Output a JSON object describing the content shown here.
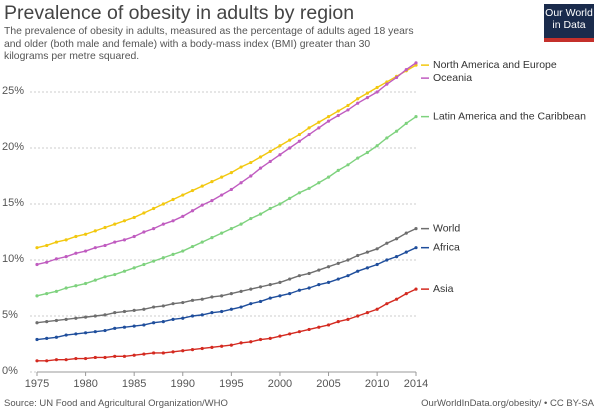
{
  "chart_data": {
    "type": "line",
    "title": "Prevalence of obesity in adults by region",
    "subtitle": "The prevalence of obesity in adults, measured as the percentage of adults aged 18 years and older (both male and female) with a body-mass index (BMI) greater than 30 kilograms per metre squared.",
    "logo": [
      "Our World",
      "in Data"
    ],
    "source": "Source: UN Food and Agricultural Organization/WHO",
    "attribution": "OurWorldInData.org/obesity/ • CC BY-SA",
    "x": [
      1975,
      1976,
      1977,
      1978,
      1979,
      1980,
      1981,
      1982,
      1983,
      1984,
      1985,
      1986,
      1987,
      1988,
      1989,
      1990,
      1991,
      1992,
      1993,
      1994,
      1995,
      1996,
      1997,
      1998,
      1999,
      2000,
      2001,
      2002,
      2003,
      2004,
      2005,
      2006,
      2007,
      2008,
      2009,
      2010,
      2011,
      2012,
      2013,
      2014
    ],
    "xlim": [
      1975,
      2014
    ],
    "xticks": [
      1975,
      1980,
      1985,
      1990,
      1995,
      2000,
      2005,
      2010,
      2014
    ],
    "ylim": [
      0,
      27.5
    ],
    "yticks": [
      {
        "value": 0,
        "label": "0%"
      },
      {
        "value": 5,
        "label": "5%"
      },
      {
        "value": 10,
        "label": "10%"
      },
      {
        "value": 15,
        "label": "15%"
      },
      {
        "value": 20,
        "label": "20%"
      },
      {
        "value": 25,
        "label": "25%"
      }
    ],
    "grid": true,
    "series": [
      {
        "name": "North America and Europe",
        "color": "#f2c80f",
        "values": [
          11.1,
          11.3,
          11.6,
          11.8,
          12.1,
          12.3,
          12.6,
          12.9,
          13.2,
          13.5,
          13.8,
          14.2,
          14.6,
          15.0,
          15.4,
          15.8,
          16.2,
          16.6,
          17.0,
          17.4,
          17.8,
          18.3,
          18.7,
          19.2,
          19.7,
          20.2,
          20.7,
          21.2,
          21.8,
          22.3,
          22.8,
          23.3,
          23.8,
          24.4,
          24.9,
          25.4,
          25.9,
          26.4,
          26.9,
          27.4
        ]
      },
      {
        "name": "Oceania",
        "color": "#c05cc0",
        "values": [
          9.6,
          9.8,
          10.1,
          10.3,
          10.6,
          10.8,
          11.1,
          11.3,
          11.6,
          11.8,
          12.1,
          12.5,
          12.8,
          13.2,
          13.5,
          13.9,
          14.4,
          14.9,
          15.3,
          15.8,
          16.3,
          16.9,
          17.5,
          18.2,
          18.8,
          19.4,
          20.0,
          20.6,
          21.2,
          21.8,
          22.4,
          22.9,
          23.4,
          24.0,
          24.5,
          25.0,
          25.7,
          26.3,
          27.0,
          27.6
        ]
      },
      {
        "name": "Latin America and the Caribbean",
        "color": "#7ed27e",
        "values": [
          6.8,
          7.0,
          7.2,
          7.5,
          7.7,
          7.9,
          8.2,
          8.5,
          8.7,
          9.0,
          9.3,
          9.6,
          9.9,
          10.2,
          10.5,
          10.8,
          11.2,
          11.6,
          12.0,
          12.4,
          12.8,
          13.2,
          13.7,
          14.1,
          14.6,
          15.0,
          15.5,
          16.0,
          16.4,
          16.9,
          17.4,
          18.0,
          18.5,
          19.1,
          19.6,
          20.2,
          20.9,
          21.5,
          22.2,
          22.8
        ]
      },
      {
        "name": "World",
        "color": "#6e6e6e",
        "values": [
          4.4,
          4.5,
          4.6,
          4.7,
          4.8,
          4.9,
          5.0,
          5.1,
          5.3,
          5.4,
          5.5,
          5.6,
          5.8,
          5.9,
          6.1,
          6.2,
          6.4,
          6.5,
          6.7,
          6.8,
          7.0,
          7.2,
          7.4,
          7.6,
          7.8,
          8.0,
          8.3,
          8.6,
          8.8,
          9.1,
          9.4,
          9.7,
          10.0,
          10.4,
          10.7,
          11.0,
          11.5,
          11.9,
          12.4,
          12.8
        ]
      },
      {
        "name": "Africa",
        "color": "#1f4e9c",
        "values": [
          2.9,
          3.0,
          3.1,
          3.3,
          3.4,
          3.5,
          3.6,
          3.7,
          3.9,
          4.0,
          4.1,
          4.2,
          4.4,
          4.5,
          4.7,
          4.8,
          5.0,
          5.1,
          5.3,
          5.4,
          5.6,
          5.8,
          6.1,
          6.3,
          6.6,
          6.8,
          7.0,
          7.3,
          7.5,
          7.8,
          8.0,
          8.3,
          8.6,
          9.0,
          9.3,
          9.6,
          10.0,
          10.3,
          10.7,
          11.1
        ]
      },
      {
        "name": "Asia",
        "color": "#d42a20",
        "values": [
          1.0,
          1.0,
          1.1,
          1.1,
          1.2,
          1.2,
          1.3,
          1.3,
          1.4,
          1.4,
          1.5,
          1.6,
          1.7,
          1.7,
          1.8,
          1.9,
          2.0,
          2.1,
          2.2,
          2.3,
          2.4,
          2.6,
          2.7,
          2.9,
          3.0,
          3.2,
          3.4,
          3.6,
          3.8,
          4.0,
          4.2,
          4.5,
          4.7,
          5.0,
          5.3,
          5.6,
          6.1,
          6.5,
          7.0,
          7.4
        ]
      }
    ]
  }
}
